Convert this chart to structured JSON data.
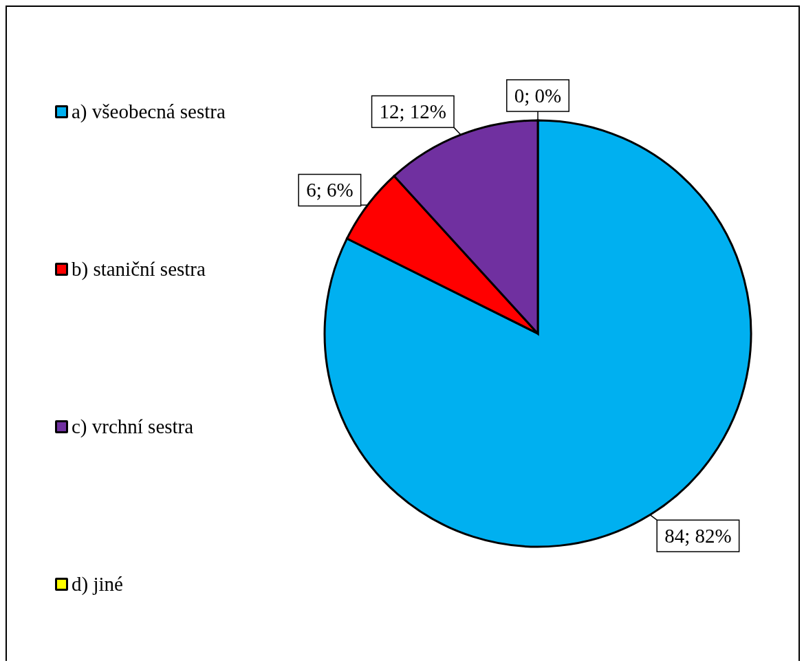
{
  "chart_data": {
    "type": "pie",
    "categories": [
      "a) všeobecná sestra",
      "b) staniční sestra",
      "c) vrchní sestra",
      "d) jiné"
    ],
    "values": [
      84,
      6,
      12,
      0
    ],
    "colors": [
      "#00b0f0",
      "#ff0000",
      "#7030a0",
      "#ffff00"
    ],
    "value_labels": [
      "84; 82%",
      "6; 6%",
      "12; 12%",
      "0; 0%"
    ],
    "legend": "left"
  }
}
